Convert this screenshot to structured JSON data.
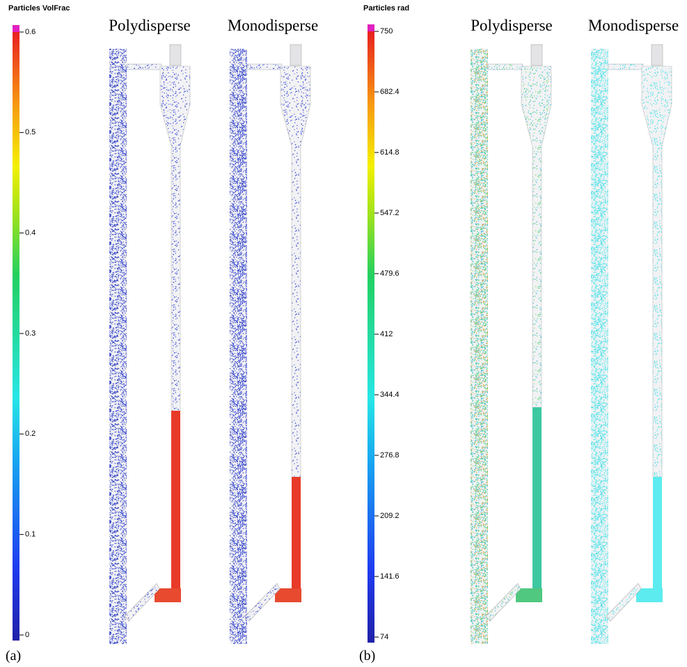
{
  "panels": [
    {
      "label": "(a)",
      "titles": [
        "Polydisperse",
        "Monodisperse"
      ],
      "colorbar": {
        "title": "Particles VolFrac",
        "lim": [
          0,
          0.6
        ],
        "ticks": [
          0,
          0.1,
          0.2,
          0.3,
          0.4,
          0.5,
          0.6
        ]
      }
    },
    {
      "label": "(b)",
      "titles": [
        "Polydisperse",
        "Monodisperse"
      ],
      "colorbar": {
        "title": "Particles rad",
        "lim": [
          74,
          750
        ],
        "ticks": [
          74,
          141.6,
          209.2,
          276.8,
          344.4,
          412,
          479.6,
          547.2,
          614.8,
          682.4,
          750
        ]
      }
    }
  ]
}
